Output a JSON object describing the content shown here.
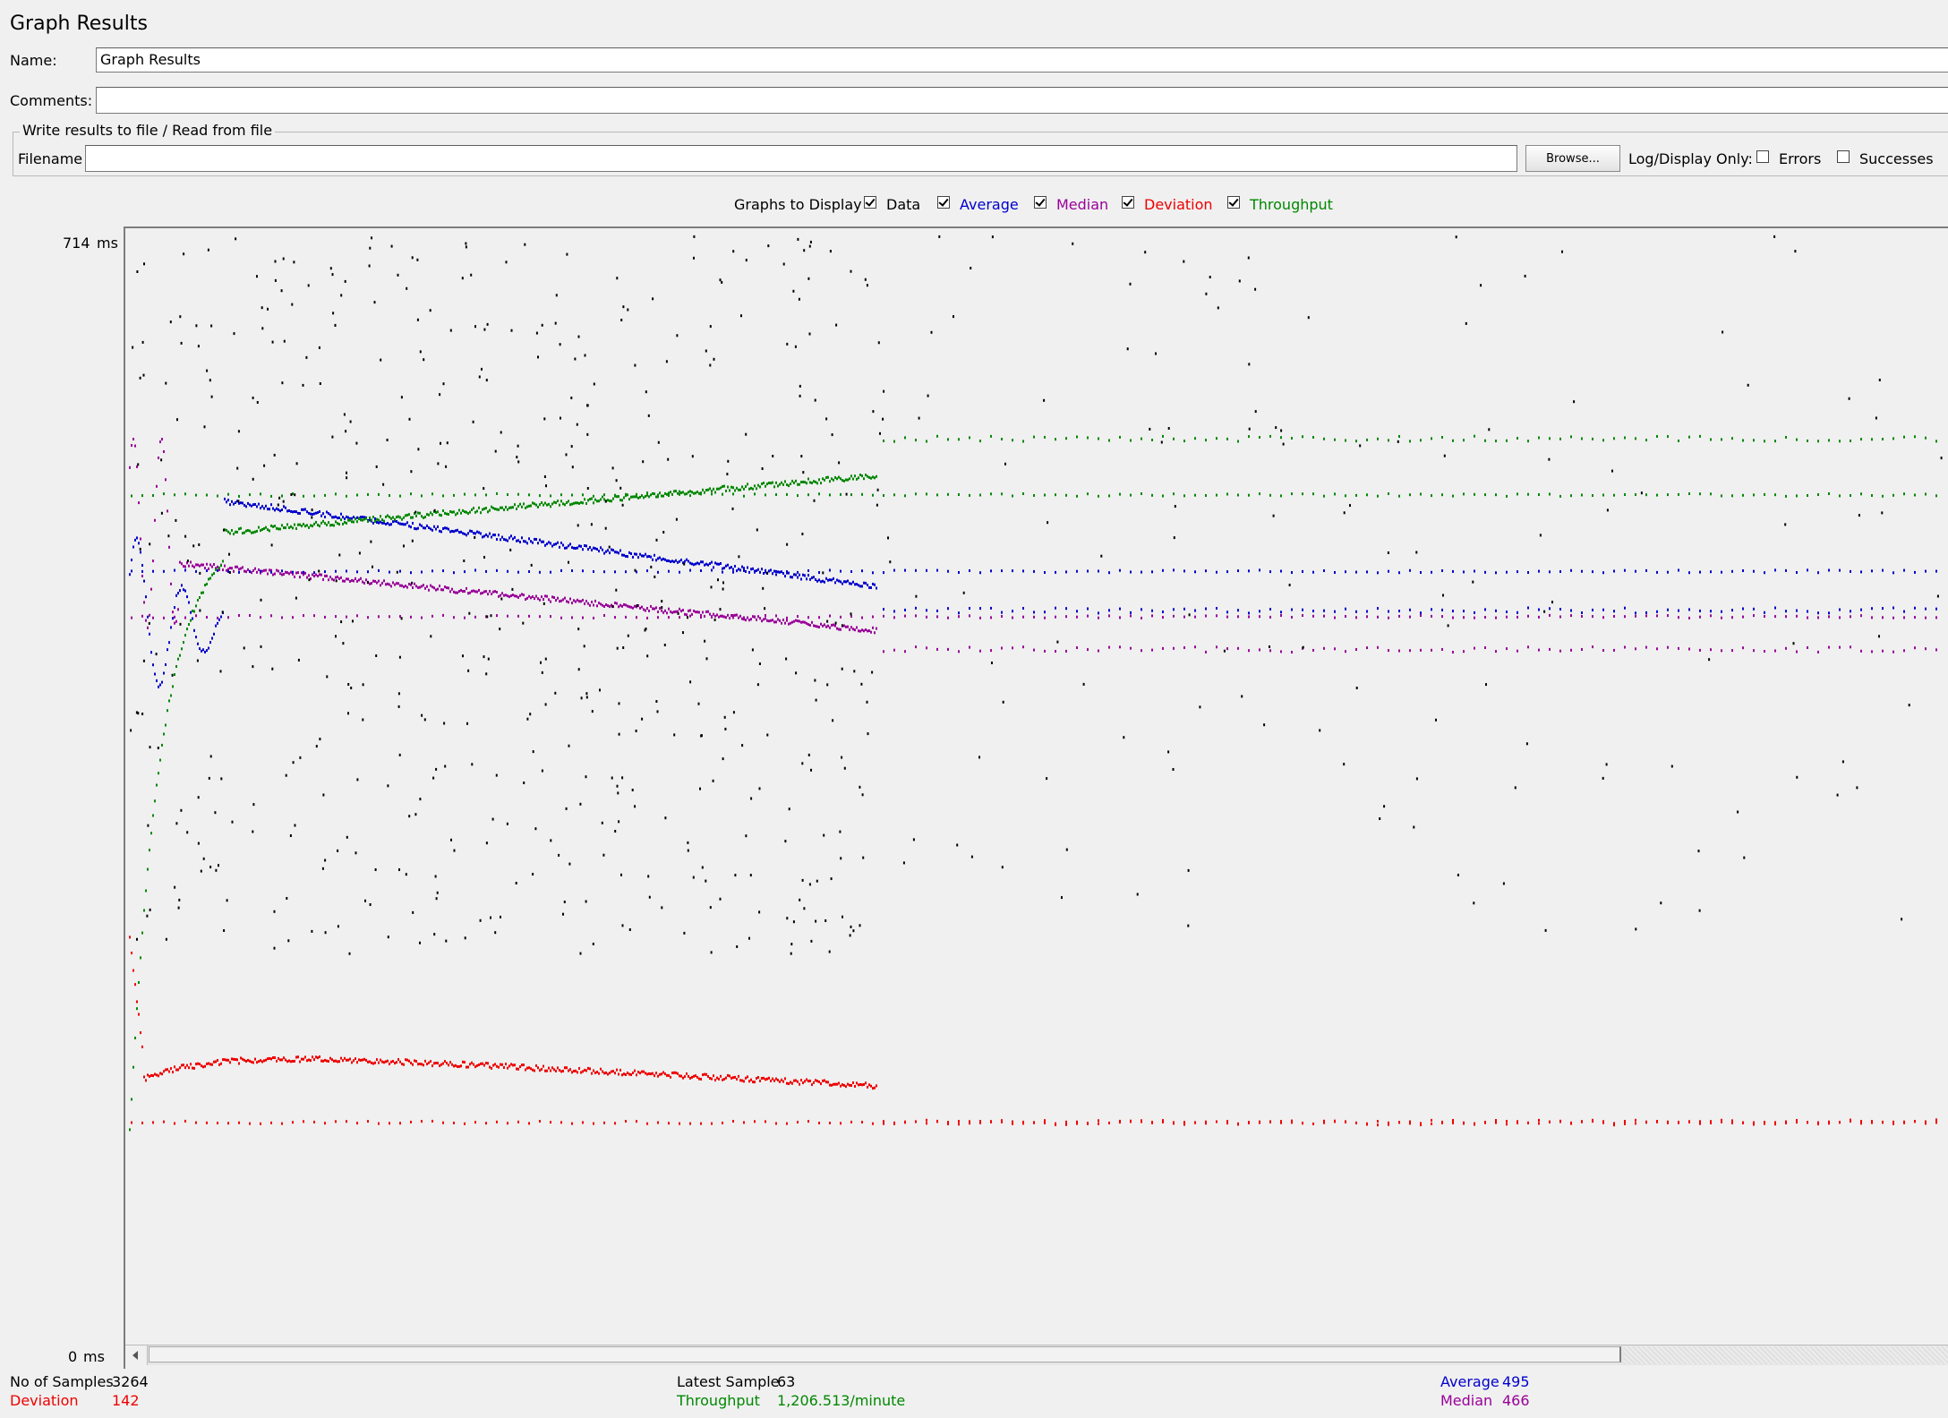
{
  "title": "Graph Results",
  "name_label": "Name:",
  "name_value": "Graph Results",
  "comments_label": "Comments:",
  "comments_value": "",
  "file_section": {
    "legend": "Write results to file / Read from file",
    "filename_label": "Filename",
    "filename_value": "",
    "browse_label": "Browse...",
    "log_display_label": "Log/Display Only:",
    "errors_label": "Errors",
    "errors_checked": false,
    "successes_label": "Successes",
    "successes_checked": false
  },
  "graphs_to_display": {
    "label": "Graphs to Display",
    "options": [
      {
        "label": "Data",
        "checked": true,
        "color": "#000000"
      },
      {
        "label": "Average",
        "checked": true,
        "color": "#0000cc"
      },
      {
        "label": "Median",
        "checked": true,
        "color": "#990099"
      },
      {
        "label": "Deviation",
        "checked": true,
        "color": "#ee0000"
      },
      {
        "label": "Throughput",
        "checked": true,
        "color": "#008800"
      }
    ]
  },
  "chart_data": {
    "type": "scatter",
    "y_top_label": "714",
    "y_bottom_label": "0",
    "y_unit": "ms",
    "ylim": [
      0,
      714
    ],
    "grid": false,
    "series": [
      {
        "name": "Data",
        "color": "#000000"
      },
      {
        "name": "Average",
        "color": "#0000cc",
        "final_value": 495
      },
      {
        "name": "Median",
        "color": "#990099",
        "final_value": 466
      },
      {
        "name": "Deviation",
        "color": "#ee0000",
        "final_value": 142
      },
      {
        "name": "Throughput",
        "color": "#008800"
      }
    ]
  },
  "stats": {
    "samples_label": "No of Samples",
    "samples_value": "3264",
    "deviation_label": "Deviation",
    "deviation_value": "142",
    "latest_label": "Latest Sample",
    "latest_value": "63",
    "throughput_label": "Throughput",
    "throughput_value": "1,206.513/minute",
    "average_label": "Average",
    "average_value": "495",
    "median_label": "Median",
    "median_value": "466"
  }
}
